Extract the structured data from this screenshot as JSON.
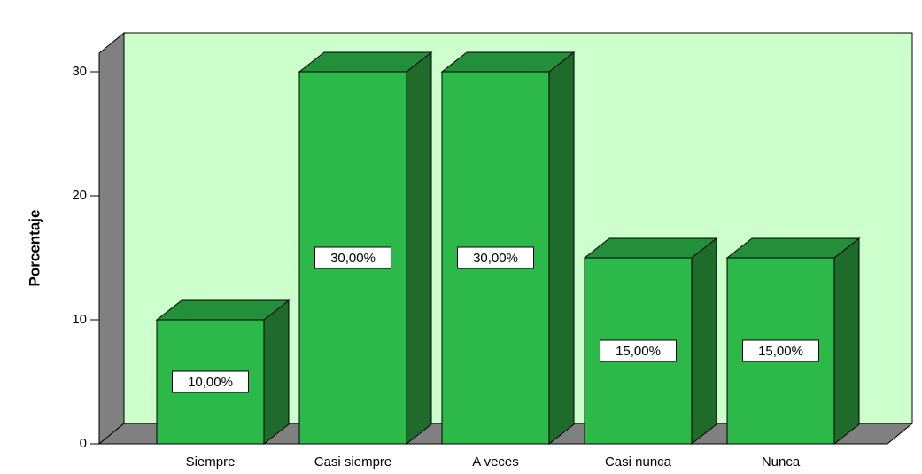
{
  "chart_data": {
    "type": "bar3d",
    "y_label": "Porcentaje",
    "categories": [
      "Siempre",
      "Casi siempre",
      "A veces",
      "Casi nunca",
      "Nunca"
    ],
    "values": [
      10,
      30,
      30,
      15,
      15
    ],
    "value_labels": [
      "10,00%",
      "30,00%",
      "30,00%",
      "15,00%",
      "15,00%"
    ],
    "color": "#2db84a",
    "ylim": [
      0,
      31.5
    ],
    "yticks": [
      0,
      10,
      20,
      30
    ]
  }
}
